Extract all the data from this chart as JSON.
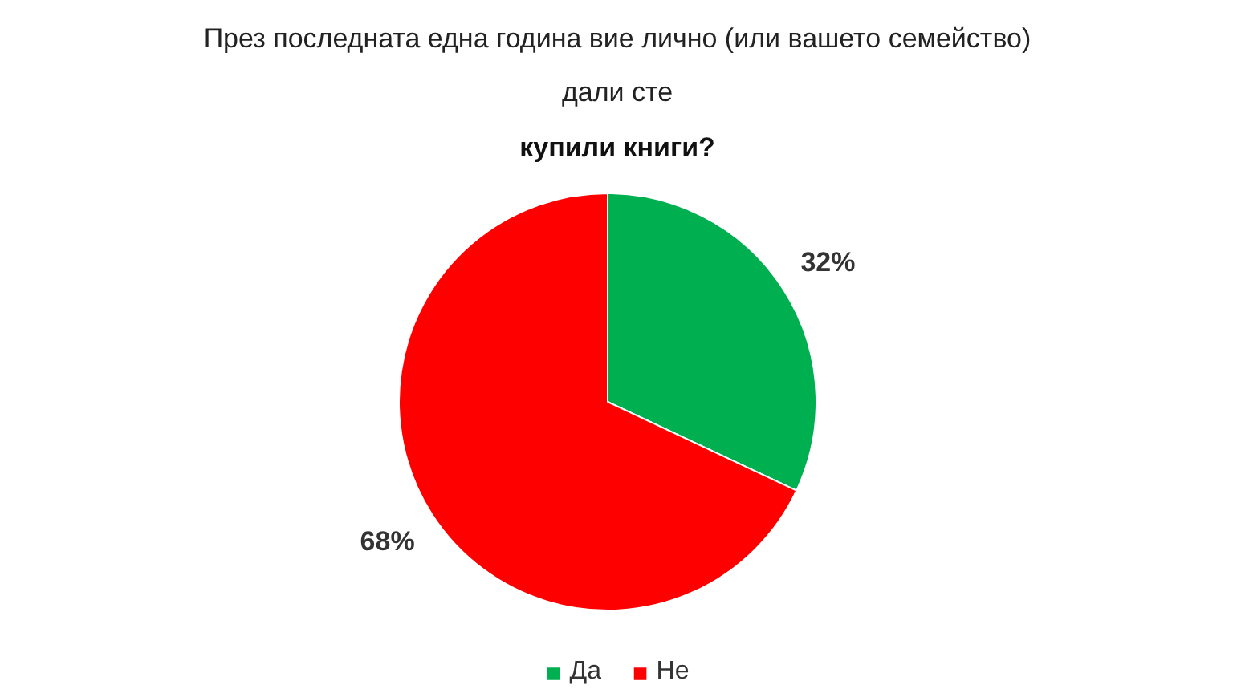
{
  "chart_data": {
    "type": "pie",
    "title": "През последната една година вие лично (или вашето семейство) дали сте",
    "subtitle": "купили книги?",
    "categories": [
      "Да",
      "Не"
    ],
    "values": [
      32,
      68
    ],
    "colors": [
      "#00b050",
      "#ff0000"
    ],
    "value_labels": [
      "32%",
      "68%"
    ],
    "legend": "bottom"
  }
}
